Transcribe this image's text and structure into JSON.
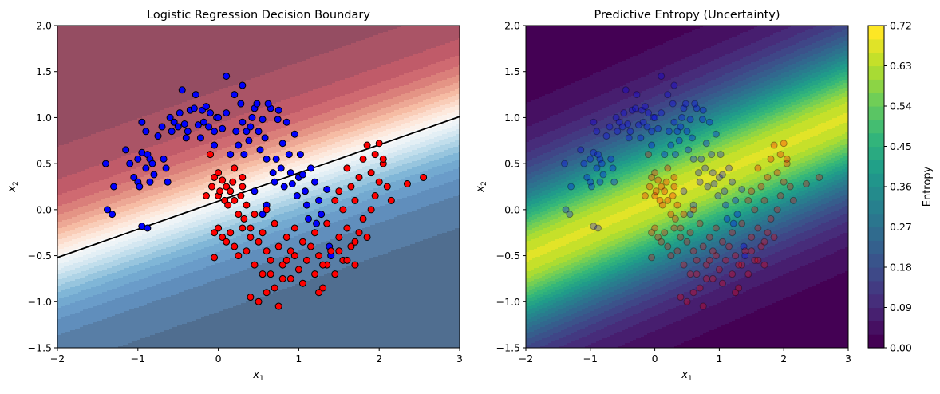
{
  "chart_data": [
    {
      "type": "scatter",
      "title": "Logistic Regression Decision Boundary",
      "xlabel_base": "x",
      "xlabel_sub": "1",
      "ylabel_base": "x",
      "ylabel_sub": "2",
      "xlim": [
        -2,
        3
      ],
      "ylim": [
        -1.5,
        2.0
      ],
      "xticks": [
        -2,
        -1,
        0,
        1,
        2,
        3
      ],
      "xtick_labels": [
        "−2",
        "−1",
        "0",
        "1",
        "2",
        "3"
      ],
      "yticks": [
        -1.5,
        -1.0,
        -0.5,
        0.0,
        0.5,
        1.0,
        1.5,
        2.0
      ],
      "ytick_labels": [
        "−1.5",
        "−1.0",
        "−0.5",
        "0.0",
        "0.5",
        "1.0",
        "1.5",
        "2.0"
      ],
      "grid": false,
      "background": "filled contour of predicted probability, RdBu colormap (red top-left, blue bottom-right)",
      "decision_boundary": {
        "color": "#000000",
        "points": [
          [
            -2,
            -0.52
          ],
          [
            3,
            1.01
          ]
        ]
      },
      "series": [
        {
          "color": "#0000ff",
          "points": [
            [
              -1.4,
              0.5
            ],
            [
              -1.38,
              0.0
            ],
            [
              -1.32,
              -0.05
            ],
            [
              -1.3,
              0.25
            ],
            [
              -1.15,
              0.65
            ],
            [
              -1.1,
              0.5
            ],
            [
              -1.05,
              0.35
            ],
            [
              -1.0,
              0.55
            ],
            [
              -1.0,
              0.3
            ],
            [
              -0.98,
              0.25
            ],
            [
              -0.95,
              0.95
            ],
            [
              -0.95,
              0.62
            ],
            [
              -0.9,
              0.85
            ],
            [
              -0.9,
              0.45
            ],
            [
              -0.88,
              0.6
            ],
            [
              -0.85,
              0.55
            ],
            [
              -0.85,
              0.3
            ],
            [
              -0.82,
              0.5
            ],
            [
              -0.8,
              0.38
            ],
            [
              -0.95,
              -0.18
            ],
            [
              -0.88,
              -0.2
            ],
            [
              -0.75,
              0.8
            ],
            [
              -0.7,
              0.9
            ],
            [
              -0.68,
              0.55
            ],
            [
              -0.65,
              0.45
            ],
            [
              -0.63,
              0.3
            ],
            [
              -0.6,
              1.0
            ],
            [
              -0.58,
              0.85
            ],
            [
              -0.55,
              0.95
            ],
            [
              -0.5,
              0.9
            ],
            [
              -0.48,
              1.05
            ],
            [
              -0.45,
              1.3
            ],
            [
              -0.42,
              0.93
            ],
            [
              -0.4,
              0.78
            ],
            [
              -0.38,
              0.85
            ],
            [
              -0.35,
              1.08
            ],
            [
              -0.3,
              1.1
            ],
            [
              -0.28,
              1.25
            ],
            [
              -0.25,
              0.92
            ],
            [
              -0.22,
              0.78
            ],
            [
              -0.2,
              1.08
            ],
            [
              -0.18,
              0.95
            ],
            [
              -0.15,
              1.12
            ],
            [
              -0.12,
              0.9
            ],
            [
              -0.1,
              1.05
            ],
            [
              -0.05,
              0.85
            ],
            [
              -0.02,
              1.0
            ],
            [
              -0.05,
              0.7
            ],
            [
              0.0,
              1.0
            ],
            [
              0.05,
              0.88
            ],
            [
              0.1,
              1.05
            ],
            [
              0.15,
              0.6
            ],
            [
              0.2,
              1.25
            ],
            [
              0.22,
              0.85
            ],
            [
              0.25,
              0.7
            ],
            [
              0.28,
              1.15
            ],
            [
              0.3,
              0.95
            ],
            [
              0.32,
              0.6
            ],
            [
              0.35,
              0.85
            ],
            [
              0.38,
              0.75
            ],
            [
              0.4,
              0.9
            ],
            [
              0.42,
              1.0
            ],
            [
              0.45,
              1.1
            ],
            [
              0.48,
              1.15
            ],
            [
              0.5,
              0.85
            ],
            [
              0.52,
              0.65
            ],
            [
              0.55,
              0.98
            ],
            [
              0.58,
              0.78
            ],
            [
              0.6,
              0.55
            ],
            [
              0.65,
              1.1
            ],
            [
              0.68,
              0.4
            ],
            [
              0.7,
              0.3
            ],
            [
              0.72,
              0.55
            ],
            [
              0.75,
              1.08
            ],
            [
              0.78,
              0.45
            ],
            [
              0.8,
              0.72
            ],
            [
              0.82,
              0.25
            ],
            [
              0.85,
              0.95
            ],
            [
              0.88,
              0.6
            ],
            [
              0.9,
              0.4
            ],
            [
              0.92,
              0.28
            ],
            [
              0.95,
              0.82
            ],
            [
              0.98,
              0.15
            ],
            [
              1.0,
              0.35
            ],
            [
              1.02,
              0.6
            ],
            [
              1.05,
              0.38
            ],
            [
              1.08,
              0.2
            ],
            [
              1.1,
              0.05
            ],
            [
              1.12,
              -0.1
            ],
            [
              1.15,
              0.45
            ],
            [
              1.2,
              0.3
            ],
            [
              1.22,
              -0.15
            ],
            [
              1.25,
              0.1
            ],
            [
              1.28,
              -0.05
            ],
            [
              1.35,
              0.22
            ],
            [
              1.38,
              -0.4
            ],
            [
              1.4,
              -0.5
            ],
            [
              0.6,
              0.05
            ],
            [
              0.55,
              -0.05
            ],
            [
              0.45,
              0.2
            ],
            [
              0.1,
              1.45
            ],
            [
              0.3,
              1.35
            ],
            [
              0.62,
              1.15
            ],
            [
              0.74,
              0.98
            ]
          ]
        },
        {
          "color": "#ff0000",
          "points": [
            [
              -0.1,
              0.6
            ],
            [
              -0.08,
              0.25
            ],
            [
              -0.05,
              0.35
            ],
            [
              0.0,
              0.15
            ],
            [
              0.0,
              0.4
            ],
            [
              0.02,
              0.2
            ],
            [
              0.05,
              0.32
            ],
            [
              0.08,
              0.1
            ],
            [
              0.1,
              0.25
            ],
            [
              0.12,
              0.05
            ],
            [
              0.15,
              0.2
            ],
            [
              0.18,
              0.3
            ],
            [
              0.2,
              0.1
            ],
            [
              0.25,
              -0.05
            ],
            [
              0.28,
              0.15
            ],
            [
              0.3,
              0.25
            ],
            [
              0.32,
              -0.1
            ],
            [
              0.35,
              0.05
            ],
            [
              0.4,
              -0.2
            ],
            [
              0.45,
              -0.05
            ],
            [
              -0.05,
              -0.25
            ],
            [
              0.0,
              -0.2
            ],
            [
              0.05,
              -0.3
            ],
            [
              0.1,
              -0.35
            ],
            [
              0.15,
              -0.25
            ],
            [
              0.2,
              -0.4
            ],
            [
              0.25,
              -0.5
            ],
            [
              0.3,
              -0.2
            ],
            [
              0.35,
              -0.45
            ],
            [
              0.4,
              -0.3
            ],
            [
              0.45,
              -0.6
            ],
            [
              0.5,
              -0.35
            ],
            [
              0.55,
              -0.7
            ],
            [
              0.6,
              -0.45
            ],
            [
              0.65,
              -0.55
            ],
            [
              0.7,
              -0.85
            ],
            [
              0.75,
              -0.4
            ],
            [
              0.8,
              -0.6
            ],
            [
              0.85,
              -0.3
            ],
            [
              0.9,
              -0.75
            ],
            [
              0.95,
              -0.5
            ],
            [
              1.0,
              -0.65
            ],
            [
              1.05,
              -0.8
            ],
            [
              1.1,
              -0.55
            ],
            [
              1.15,
              -0.4
            ],
            [
              1.2,
              -0.7
            ],
            [
              1.25,
              -0.5
            ],
            [
              1.3,
              -0.85
            ],
            [
              1.35,
              -0.6
            ],
            [
              1.4,
              -0.45
            ],
            [
              1.45,
              -0.7
            ],
            [
              1.5,
              -0.3
            ],
            [
              1.55,
              -0.55
            ],
            [
              1.6,
              -0.2
            ],
            [
              1.65,
              -0.4
            ],
            [
              1.7,
              -0.6
            ],
            [
              1.75,
              -0.25
            ],
            [
              1.8,
              -0.1
            ],
            [
              1.85,
              -0.3
            ],
            [
              1.9,
              0.0
            ],
            [
              1.95,
              0.15
            ],
            [
              2.0,
              0.3
            ],
            [
              2.05,
              0.5
            ],
            [
              2.1,
              0.25
            ],
            [
              2.15,
              0.1
            ],
            [
              1.6,
              0.45
            ],
            [
              1.65,
              0.25
            ],
            [
              1.7,
              0.1
            ],
            [
              1.75,
              0.35
            ],
            [
              1.8,
              0.55
            ],
            [
              1.85,
              0.7
            ],
            [
              1.9,
              0.4
            ],
            [
              1.95,
              0.6
            ],
            [
              2.0,
              0.72
            ],
            [
              2.05,
              0.55
            ],
            [
              1.5,
              0.2
            ],
            [
              1.55,
              0.0
            ],
            [
              1.45,
              0.1
            ],
            [
              2.35,
              0.28
            ],
            [
              2.55,
              0.35
            ],
            [
              0.4,
              -0.95
            ],
            [
              0.5,
              -1.0
            ],
            [
              0.6,
              -0.9
            ],
            [
              0.8,
              -0.75
            ],
            [
              1.25,
              -0.9
            ],
            [
              0.75,
              -1.05
            ],
            [
              0.65,
              -0.7
            ],
            [
              0.85,
              -0.55
            ],
            [
              1.05,
              -0.35
            ],
            [
              1.2,
              -0.25
            ],
            [
              1.35,
              -0.15
            ],
            [
              1.5,
              -0.45
            ],
            [
              1.7,
              -0.35
            ],
            [
              0.95,
              -0.2
            ],
            [
              0.55,
              -0.25
            ],
            [
              0.6,
              0.0
            ],
            [
              0.7,
              -0.15
            ],
            [
              -0.05,
              -0.52
            ],
            [
              0.3,
              0.35
            ],
            [
              0.2,
              0.45
            ],
            [
              -0.15,
              0.15
            ],
            [
              1.6,
              -0.55
            ],
            [
              1.3,
              -0.6
            ],
            [
              0.9,
              -0.45
            ]
          ]
        }
      ]
    },
    {
      "type": "heatmap",
      "title": "Predictive Entropy (Uncertainty)",
      "xlabel_base": "x",
      "xlabel_sub": "1",
      "ylabel_base": "x",
      "ylabel_sub": "2",
      "xlim": [
        -2,
        3
      ],
      "ylim": [
        -1.5,
        2.0
      ],
      "xticks": [
        -2,
        -1,
        0,
        1,
        2,
        3
      ],
      "xtick_labels": [
        "−2",
        "−1",
        "0",
        "1",
        "2",
        "3"
      ],
      "yticks": [
        -1.5,
        -1.0,
        -0.5,
        0.0,
        0.5,
        1.0,
        1.5,
        2.0
      ],
      "ytick_labels": [
        "−1.5",
        "−1.0",
        "−0.5",
        "0.0",
        "0.5",
        "1.0",
        "1.5",
        "2.0"
      ],
      "colormap": "viridis",
      "colorbar": {
        "label": "Entropy",
        "ticks": [
          0.0,
          0.09,
          0.18,
          0.27,
          0.36,
          0.45,
          0.54,
          0.63,
          0.72
        ],
        "tick_labels": [
          "0.00",
          "0.09",
          "0.18",
          "0.27",
          "0.36",
          "0.45",
          "0.54",
          "0.63",
          "0.72"
        ],
        "range": [
          0.0,
          0.72
        ]
      },
      "overlay": "same points as left panel, semi-transparent"
    }
  ]
}
